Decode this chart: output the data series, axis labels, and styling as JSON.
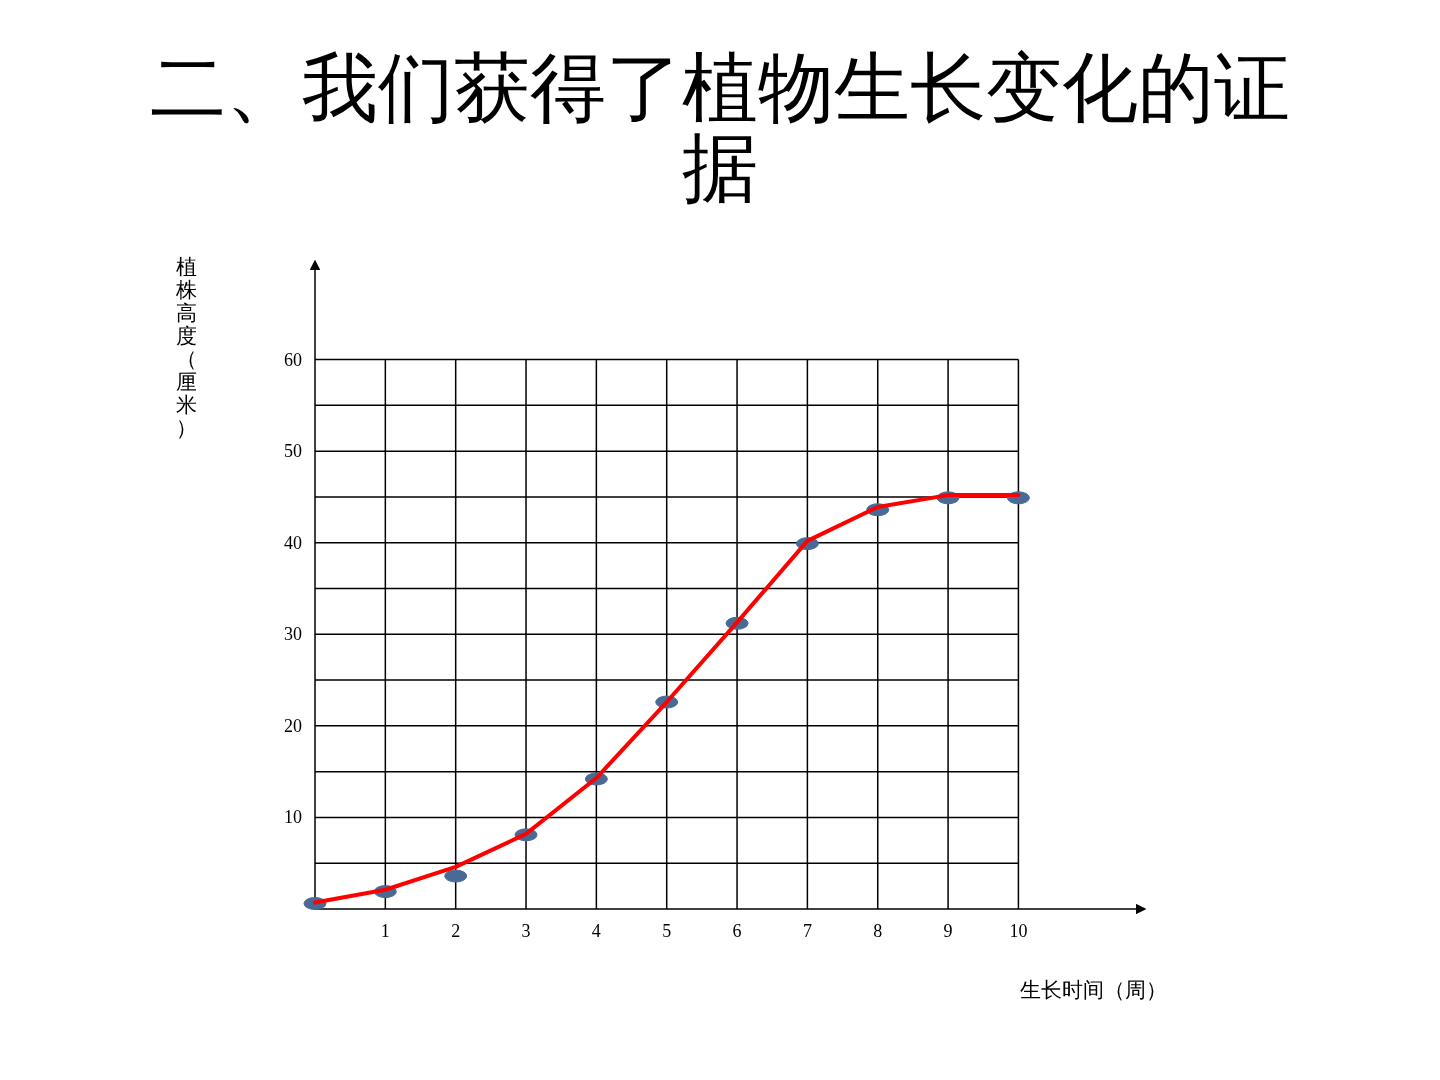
{
  "chart_data": {
    "type": "line",
    "title": "二、我们获得了植物生长变化的证据",
    "xlabel": "生长时间（周）",
    "ylabel": "植株高度（厘米）",
    "x": [
      0,
      1,
      2,
      3,
      4,
      5,
      6,
      7,
      8,
      9,
      10
    ],
    "series": [
      {
        "type": "line",
        "color": "#ff0000",
        "values": [
          0.7,
          2.1,
          4.6,
          8.2,
          14.3,
          22.6,
          31.3,
          40.2,
          43.9,
          45.2,
          45.2
        ]
      },
      {
        "type": "scatter",
        "marker": "circle",
        "color": "#4a6a96",
        "values": [
          0.6,
          1.9,
          3.6,
          8.1,
          14.2,
          22.6,
          31.2,
          39.9,
          43.6,
          44.9,
          44.9
        ]
      }
    ],
    "xlim": [
      0,
      11.7
    ],
    "ylim": [
      0,
      70
    ],
    "xticks": [
      1,
      2,
      3,
      4,
      5,
      6,
      7,
      8,
      9,
      10
    ],
    "yticks": [
      {
        "value": 5,
        "label": null
      },
      10,
      {
        "value": 15,
        "label": null
      },
      20,
      {
        "value": 25,
        "label": null
      },
      30,
      {
        "value": 35,
        "label": null
      },
      40,
      {
        "value": 45,
        "label": null
      },
      50,
      {
        "value": 55,
        "label": null
      },
      60
    ],
    "grid": true
  }
}
